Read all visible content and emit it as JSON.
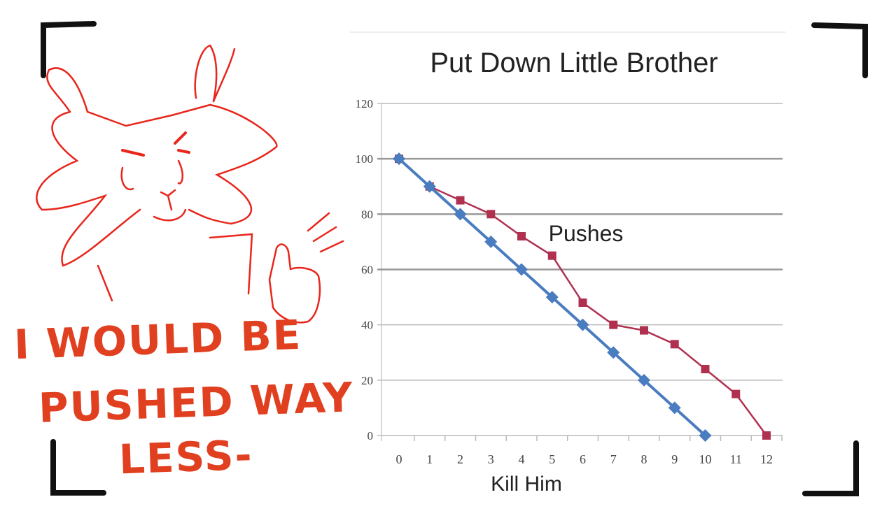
{
  "caption": {
    "line1": "I WOULD BE",
    "line2": "PUSHED WAY",
    "line3": "LESS-"
  },
  "colors": {
    "doodle": "#e8261c",
    "caption": "#e04020",
    "frame": "#111111"
  },
  "chart_data": {
    "type": "line",
    "title": "Put Down Little Brother",
    "xlabel": "Kill Him",
    "ylabel": "",
    "annotation": "Pushes",
    "x": [
      0,
      1,
      2,
      3,
      4,
      5,
      6,
      7,
      8,
      9,
      10,
      11,
      12
    ],
    "xlim": [
      0,
      12
    ],
    "ylim": [
      0,
      120
    ],
    "yticks": [
      0,
      20,
      40,
      60,
      80,
      100,
      120
    ],
    "grid": true,
    "legend": "none",
    "series": [
      {
        "color": "#4a7cc0",
        "marker": "diamond",
        "x": [
          0,
          1,
          2,
          3,
          4,
          5,
          6,
          7,
          8,
          9,
          10
        ],
        "values": [
          100,
          90,
          80,
          70,
          60,
          50,
          40,
          30,
          20,
          10,
          0
        ]
      },
      {
        "color": "#b0304f",
        "marker": "square",
        "x": [
          0,
          1,
          2,
          3,
          4,
          5,
          6,
          7,
          8,
          9,
          10,
          11,
          12
        ],
        "values": [
          100,
          90,
          85,
          80,
          72,
          65,
          48,
          40,
          38,
          33,
          24,
          15,
          0
        ]
      }
    ]
  }
}
